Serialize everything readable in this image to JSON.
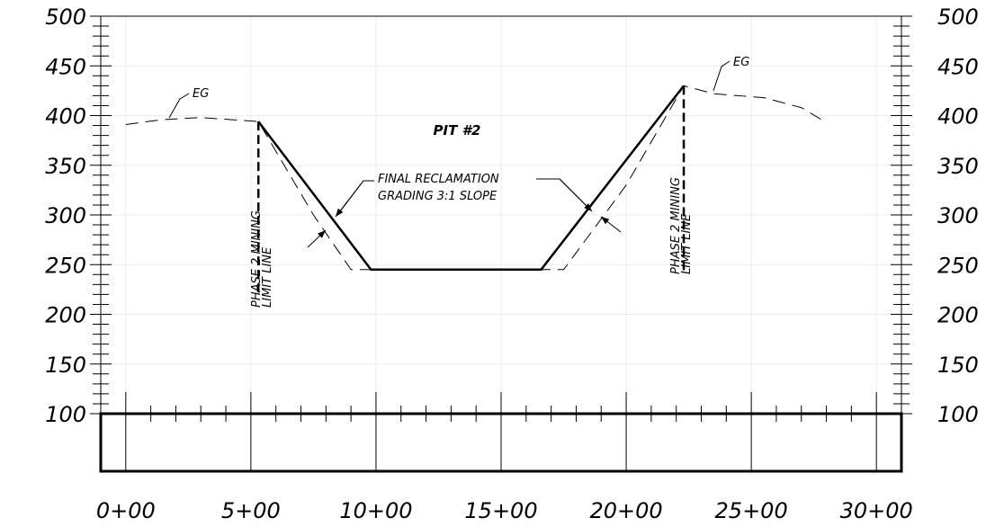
{
  "chart_data": {
    "type": "line",
    "title": "",
    "xlabel": "",
    "ylabel": "",
    "xlim": [
      -1,
      31
    ],
    "ylim": [
      100,
      500
    ],
    "grid": true,
    "legend": "none",
    "x_tick_labels": [
      "0+00",
      "5+00",
      "10+00",
      "15+00",
      "20+00",
      "25+00",
      "30+00"
    ],
    "x_tick_values": [
      0,
      5,
      10,
      15,
      20,
      25,
      30
    ],
    "y_tick_values": [
      100,
      150,
      200,
      250,
      300,
      350,
      400,
      450,
      500
    ],
    "y_tick_labels": [
      "100",
      "150",
      "200",
      "250",
      "300",
      "350",
      "400",
      "450",
      "500"
    ],
    "series": [
      {
        "key": "final_grade",
        "style": "solid-heavy",
        "x": [
          5.3,
          9.8,
          16.6,
          22.3
        ],
        "y": [
          394,
          245,
          245,
          430
        ]
      },
      {
        "key": "existing_ground",
        "style": "dashed",
        "x": [
          0,
          1.5,
          3.0,
          5.3,
          7.5,
          9.0,
          17.5,
          20.0,
          22.3,
          23.5,
          25.5,
          27.0,
          28.0
        ],
        "y": [
          391,
          396,
          398,
          394,
          300,
          245,
          245,
          330,
          430,
          422,
          418,
          408,
          393
        ]
      }
    ],
    "limit_lines": [
      {
        "x": 5.3,
        "y_top": 394,
        "y_bottom": 220
      },
      {
        "x": 22.3,
        "y_top": 430,
        "y_bottom": 240
      }
    ],
    "annotations": {
      "pit_label": "PIT #2",
      "eg_left": "EG",
      "eg_right": "EG",
      "reclamation_line1": "FINAL RECLAMATION",
      "reclamation_line2": "GRADING 3:1 SLOPE",
      "limit_left_line1": "PHASE 2 MINING",
      "limit_left_line2": "LIMIT LINE",
      "limit_right_line1": "PHASE 2 MINING",
      "limit_right_line2": "LIMIT LINE"
    }
  }
}
